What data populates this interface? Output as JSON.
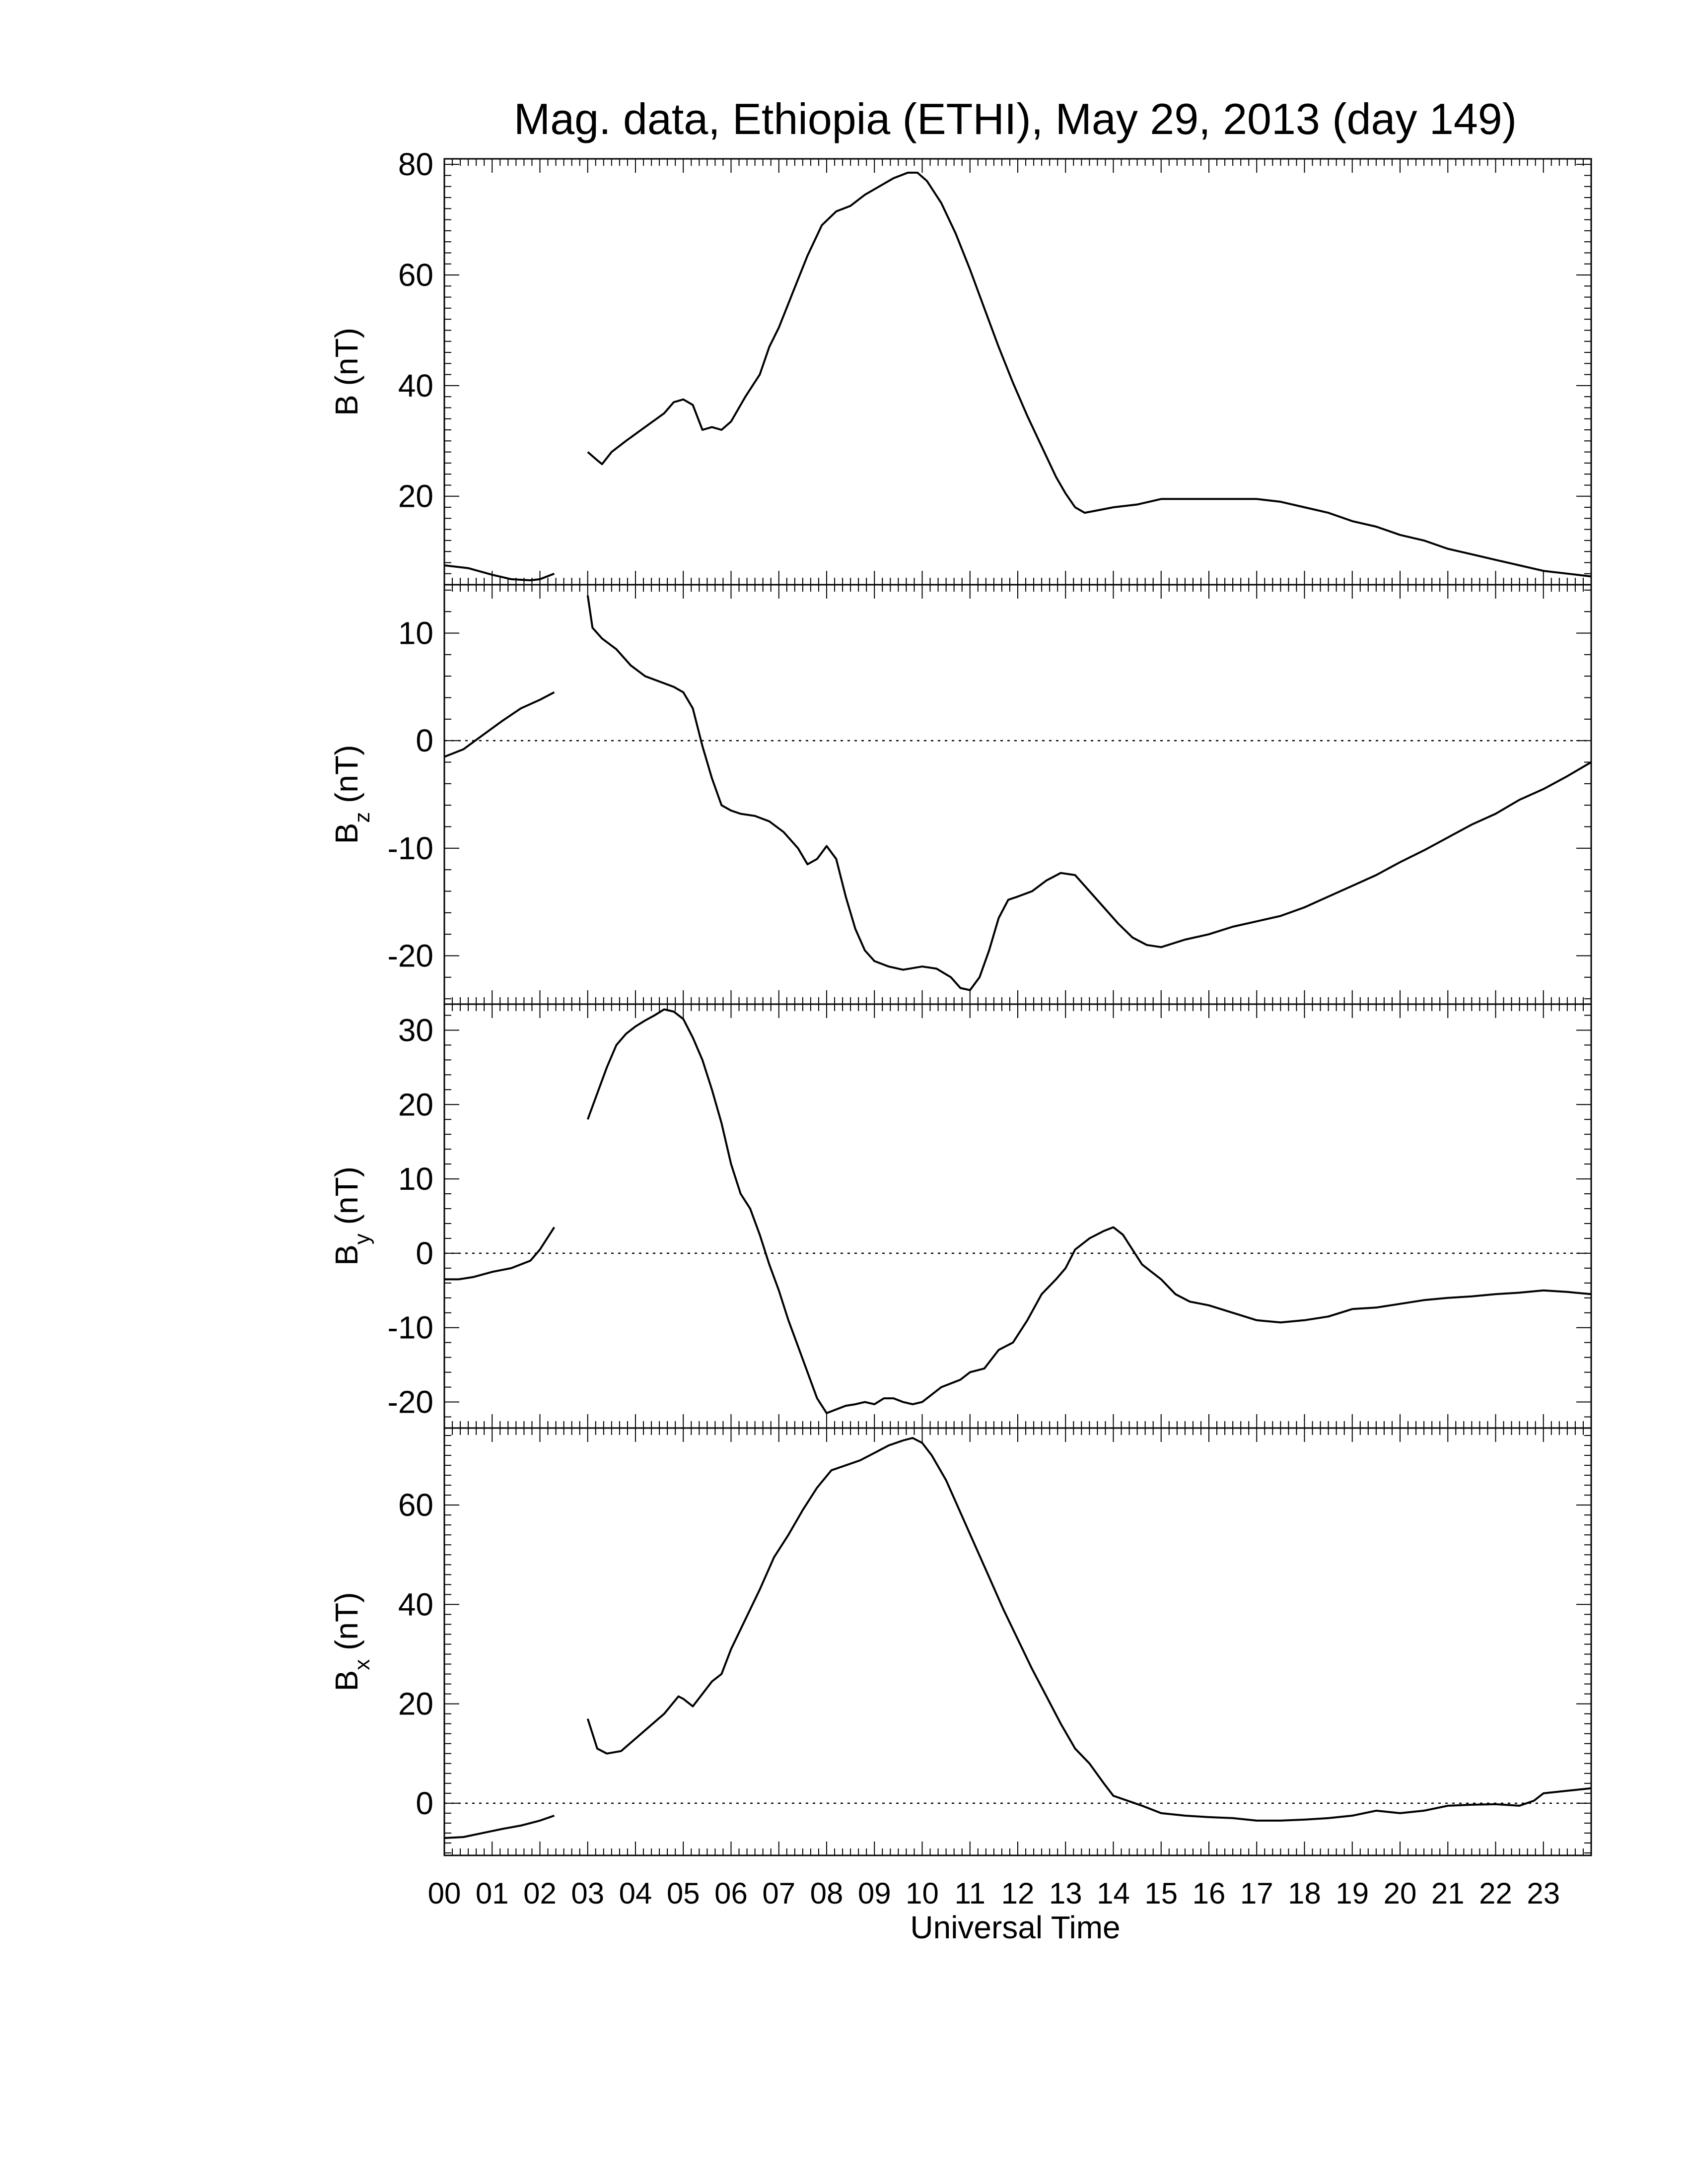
{
  "chart_data": {
    "type": "line",
    "title": "Mag. data, Ethiopia (ETHI), May 29, 2013 (day 149)",
    "xlabel": "Universal Time",
    "x_ticks": [
      "00",
      "01",
      "02",
      "03",
      "04",
      "05",
      "06",
      "07",
      "08",
      "09",
      "10",
      "11",
      "12",
      "13",
      "14",
      "15",
      "16",
      "17",
      "18",
      "19",
      "20",
      "21",
      "22",
      "23"
    ],
    "xlim": [
      0,
      24
    ],
    "panels": [
      {
        "ylabel_main": "B",
        "ylabel_sub": "",
        "ylabel_unit": "(nT)",
        "ylim": [
          4,
          81
        ],
        "yticks": [
          20,
          40,
          60,
          80
        ],
        "zero_line": false,
        "series": [
          {
            "x": [
              0.0,
              0.5,
              1.0,
              1.4,
              1.8,
              2.0,
              2.3
            ],
            "y": [
              7.5,
              7.0,
              5.8,
              5.0,
              4.8,
              5.0,
              6.0
            ]
          },
          {
            "x": [
              3.0,
              3.2,
              3.3,
              3.5,
              3.8,
              4.2,
              4.6,
              4.8,
              5.0,
              5.2,
              5.4,
              5.6,
              5.8,
              6.0,
              6.3,
              6.6,
              6.8,
              7.0,
              7.3,
              7.6,
              7.9,
              8.2,
              8.5,
              8.8,
              9.1,
              9.4,
              9.7,
              9.9,
              10.1,
              10.4,
              10.7,
              11.0,
              11.3,
              11.6,
              11.9,
              12.2,
              12.5,
              12.8,
              13.0,
              13.2,
              13.4,
              13.7,
              14.0,
              14.5,
              15.0,
              15.5,
              16.0,
              16.5,
              17.0,
              17.5,
              18.0,
              18.5,
              19.0,
              19.5,
              20.0,
              20.5,
              21.0,
              21.5,
              22.0,
              22.5,
              23.0,
              23.5,
              24.0
            ],
            "y": [
              28.0,
              26.5,
              25.8,
              28.0,
              30.0,
              32.5,
              35.0,
              37.0,
              37.5,
              36.5,
              32.0,
              32.5,
              32.0,
              33.5,
              38.0,
              42.0,
              47.0,
              50.5,
              57.0,
              63.5,
              69.0,
              71.5,
              72.5,
              74.5,
              76.0,
              77.5,
              78.5,
              78.5,
              77.0,
              73.0,
              67.5,
              61.0,
              54.0,
              47.0,
              40.5,
              34.5,
              29.0,
              23.5,
              20.5,
              18.0,
              17.0,
              17.5,
              18.0,
              18.5,
              19.5,
              19.5,
              19.5,
              19.5,
              19.5,
              19.0,
              18.0,
              17.0,
              15.5,
              14.5,
              13.0,
              12.0,
              10.5,
              9.5,
              8.5,
              7.5,
              6.5,
              6.0,
              5.5
            ]
          }
        ]
      },
      {
        "ylabel_main": "B",
        "ylabel_sub": "z",
        "ylabel_unit": "(nT)",
        "ylim": [
          -24.5,
          14.5
        ],
        "yticks": [
          -20,
          -10,
          0,
          10
        ],
        "zero_line": true,
        "series": [
          {
            "x": [
              0.0,
              0.4,
              0.8,
              1.2,
              1.6,
              2.0,
              2.3
            ],
            "y": [
              -1.5,
              -0.8,
              0.5,
              1.8,
              3.0,
              3.8,
              4.5
            ]
          },
          {
            "x": [
              3.0,
              3.1,
              3.3,
              3.6,
              3.9,
              4.2,
              4.5,
              4.8,
              5.0,
              5.2,
              5.4,
              5.6,
              5.8,
              6.0,
              6.2,
              6.5,
              6.8,
              7.1,
              7.4,
              7.6,
              7.8,
              8.0,
              8.2,
              8.4,
              8.6,
              8.8,
              9.0,
              9.3,
              9.6,
              10.0,
              10.3,
              10.6,
              10.8,
              11.0,
              11.2,
              11.4,
              11.6,
              11.8,
              12.0,
              12.3,
              12.6,
              12.9,
              13.2,
              13.5,
              13.8,
              14.1,
              14.4,
              14.7,
              15.0,
              15.5,
              16.0,
              16.5,
              17.0,
              17.5,
              18.0,
              18.5,
              19.0,
              19.5,
              20.0,
              20.5,
              21.0,
              21.5,
              22.0,
              22.5,
              23.0,
              23.5,
              24.0
            ],
            "y": [
              13.5,
              10.5,
              9.5,
              8.5,
              7.0,
              6.0,
              5.5,
              5.0,
              4.5,
              3.0,
              -0.5,
              -3.5,
              -6.0,
              -6.5,
              -6.8,
              -7.0,
              -7.5,
              -8.5,
              -10.0,
              -11.5,
              -11.0,
              -9.8,
              -11.0,
              -14.5,
              -17.5,
              -19.5,
              -20.5,
              -21.0,
              -21.3,
              -21.0,
              -21.2,
              -22.0,
              -23.0,
              -23.2,
              -22.0,
              -19.5,
              -16.5,
              -14.8,
              -14.5,
              -14.0,
              -13.0,
              -12.3,
              -12.5,
              -14.0,
              -15.5,
              -17.0,
              -18.3,
              -19.0,
              -19.2,
              -18.5,
              -18.0,
              -17.3,
              -16.8,
              -16.3,
              -15.5,
              -14.5,
              -13.5,
              -12.5,
              -11.3,
              -10.2,
              -9.0,
              -7.8,
              -6.8,
              -5.5,
              -4.5,
              -3.3,
              -2.0
            ]
          }
        ]
      },
      {
        "ylabel_main": "B",
        "ylabel_sub": "y",
        "ylabel_unit": "(nT)",
        "ylim": [
          -23.5,
          33.5
        ],
        "yticks": [
          -20,
          -10,
          0,
          10,
          20,
          30
        ],
        "zero_line": true,
        "series": [
          {
            "x": [
              0.0,
              0.3,
              0.6,
              1.0,
              1.4,
              1.8,
              2.0,
              2.3
            ],
            "y": [
              -3.5,
              -3.5,
              -3.2,
              -2.5,
              -2.0,
              -1.0,
              0.5,
              3.5
            ]
          },
          {
            "x": [
              3.0,
              3.2,
              3.4,
              3.6,
              3.8,
              4.0,
              4.2,
              4.4,
              4.6,
              4.8,
              5.0,
              5.2,
              5.4,
              5.6,
              5.8,
              6.0,
              6.2,
              6.4,
              6.6,
              6.8,
              7.0,
              7.2,
              7.4,
              7.6,
              7.8,
              8.0,
              8.2,
              8.4,
              8.6,
              8.8,
              9.0,
              9.2,
              9.4,
              9.6,
              9.8,
              10.0,
              10.2,
              10.4,
              10.6,
              10.8,
              11.0,
              11.3,
              11.6,
              11.9,
              12.2,
              12.5,
              12.8,
              13.0,
              13.2,
              13.5,
              13.8,
              14.0,
              14.2,
              14.4,
              14.6,
              14.8,
              15.0,
              15.3,
              15.6,
              16.0,
              16.5,
              17.0,
              17.5,
              18.0,
              18.5,
              19.0,
              19.5,
              20.0,
              20.5,
              21.0,
              21.5,
              22.0,
              22.5,
              23.0,
              23.5,
              24.0
            ],
            "y": [
              18.0,
              21.5,
              25.0,
              28.0,
              29.5,
              30.5,
              31.3,
              32.0,
              32.8,
              32.5,
              31.5,
              29.0,
              26.0,
              22.0,
              17.5,
              12.0,
              8.0,
              6.0,
              2.5,
              -1.5,
              -5.0,
              -9.0,
              -12.5,
              -16.0,
              -19.5,
              -21.5,
              -21.0,
              -20.5,
              -20.3,
              -20.0,
              -20.3,
              -19.5,
              -19.5,
              -20.0,
              -20.3,
              -20.0,
              -19.0,
              -18.0,
              -17.5,
              -17.0,
              -16.0,
              -15.5,
              -13.0,
              -12.0,
              -9.0,
              -5.5,
              -3.5,
              -2.0,
              0.5,
              2.0,
              3.0,
              3.5,
              2.5,
              0.5,
              -1.5,
              -2.5,
              -3.5,
              -5.5,
              -6.5,
              -7.0,
              -8.0,
              -9.0,
              -9.3,
              -9.0,
              -8.5,
              -7.5,
              -7.3,
              -6.8,
              -6.3,
              -6.0,
              -5.8,
              -5.5,
              -5.3,
              -5.0,
              -5.2,
              -5.5
            ]
          }
        ]
      },
      {
        "ylabel_main": "B",
        "ylabel_sub": "x",
        "ylabel_unit": "(nT)",
        "ylim": [
          -10.5,
          75.5
        ],
        "yticks": [
          0,
          20,
          40,
          60
        ],
        "zero_line": true,
        "series": [
          {
            "x": [
              0.0,
              0.4,
              0.8,
              1.2,
              1.6,
              2.0,
              2.3
            ],
            "y": [
              -7.0,
              -6.8,
              -6.0,
              -5.2,
              -4.5,
              -3.5,
              -2.5
            ]
          },
          {
            "x": [
              3.0,
              3.1,
              3.2,
              3.4,
              3.7,
              4.0,
              4.3,
              4.6,
              4.9,
              5.0,
              5.2,
              5.4,
              5.6,
              5.8,
              6.0,
              6.3,
              6.6,
              6.9,
              7.2,
              7.5,
              7.8,
              8.1,
              8.4,
              8.7,
              9.0,
              9.3,
              9.6,
              9.8,
              10.0,
              10.2,
              10.5,
              10.8,
              11.1,
              11.4,
              11.7,
              12.0,
              12.3,
              12.6,
              12.9,
              13.2,
              13.5,
              13.8,
              14.0,
              14.3,
              14.6,
              15.0,
              15.5,
              16.0,
              16.5,
              17.0,
              17.5,
              18.0,
              18.5,
              19.0,
              19.5,
              20.0,
              20.5,
              21.0,
              21.5,
              22.0,
              22.5,
              22.8,
              23.0,
              23.5,
              24.0
            ],
            "y": [
              17.0,
              14.0,
              11.0,
              10.0,
              10.5,
              13.0,
              15.5,
              18.0,
              21.5,
              21.0,
              19.5,
              22.0,
              24.5,
              26.0,
              31.0,
              37.0,
              43.0,
              49.5,
              54.0,
              59.0,
              63.5,
              67.0,
              68.0,
              69.0,
              70.5,
              72.0,
              73.0,
              73.5,
              72.5,
              70.0,
              65.0,
              58.5,
              52.0,
              45.5,
              39.0,
              33.0,
              27.0,
              21.5,
              16.0,
              11.0,
              8.0,
              4.0,
              1.5,
              0.5,
              -0.5,
              -2.0,
              -2.5,
              -2.8,
              -3.0,
              -3.5,
              -3.5,
              -3.3,
              -3.0,
              -2.5,
              -1.5,
              -2.0,
              -1.5,
              -0.5,
              -0.3,
              -0.2,
              -0.5,
              0.5,
              2.0,
              2.5,
              3.0
            ]
          }
        ]
      }
    ]
  }
}
